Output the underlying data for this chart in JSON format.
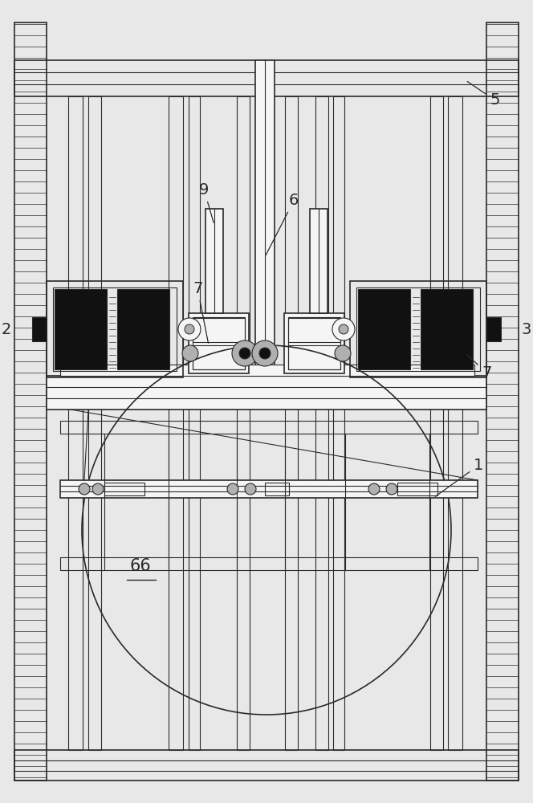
{
  "bg_color": "#e8e8e8",
  "line_color": "#2a2a2a",
  "dark_fill": "#111111",
  "light_fill": "#b0b0b0",
  "white_fill": "#f5f5f5",
  "figsize": [
    6.64,
    10.0
  ],
  "dpi": 100
}
